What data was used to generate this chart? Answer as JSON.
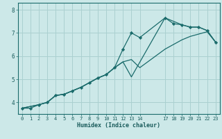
{
  "xlabel": "Humidex (Indice chaleur)",
  "background_color": "#cce8e8",
  "grid_color": "#aad0d0",
  "line_color": "#1a6b6b",
  "xlim": [
    -0.5,
    23.5
  ],
  "ylim": [
    3.5,
    8.3
  ],
  "yticks": [
    4,
    5,
    6,
    7,
    8
  ],
  "xticks": [
    0,
    1,
    2,
    3,
    4,
    5,
    6,
    7,
    8,
    9,
    10,
    11,
    12,
    13,
    14,
    17,
    18,
    19,
    20,
    21,
    22,
    23
  ],
  "series_marked": {
    "x": [
      0,
      1,
      2,
      3,
      4,
      5,
      6,
      7,
      8,
      9,
      10,
      11,
      12,
      13,
      14,
      17,
      18,
      19,
      20,
      21,
      22,
      23
    ],
    "y": [
      3.75,
      3.75,
      3.9,
      4.0,
      4.3,
      4.35,
      4.5,
      4.65,
      4.85,
      5.05,
      5.2,
      5.5,
      6.3,
      7.0,
      6.8,
      7.65,
      7.4,
      7.35,
      7.25,
      7.25,
      7.1,
      6.6
    ]
  },
  "series_upper": {
    "x": [
      0,
      2,
      3,
      4,
      5,
      6,
      7,
      8,
      9,
      10,
      11,
      12,
      13,
      17,
      18,
      19,
      20,
      21,
      22,
      23
    ],
    "y": [
      3.75,
      3.9,
      4.0,
      4.3,
      4.35,
      4.5,
      4.65,
      4.85,
      5.05,
      5.2,
      5.5,
      5.75,
      5.1,
      7.65,
      7.5,
      7.35,
      7.25,
      7.25,
      7.1,
      6.6
    ]
  },
  "series_straight": {
    "x": [
      0,
      2,
      3,
      4,
      5,
      6,
      7,
      8,
      9,
      10,
      11,
      12,
      13,
      14,
      17,
      18,
      19,
      20,
      21,
      22,
      23
    ],
    "y": [
      3.75,
      3.9,
      4.0,
      4.3,
      4.35,
      4.5,
      4.65,
      4.85,
      5.05,
      5.2,
      5.5,
      5.75,
      5.85,
      5.5,
      6.3,
      6.5,
      6.7,
      6.85,
      6.95,
      7.05,
      6.6
    ]
  }
}
